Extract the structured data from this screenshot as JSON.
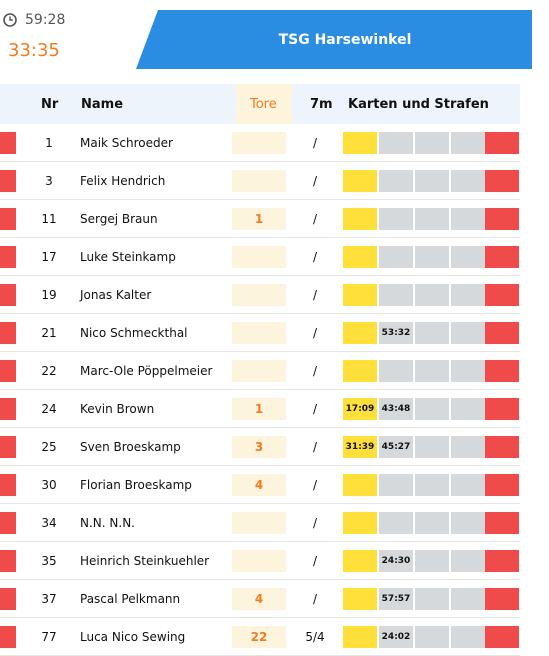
{
  "header": {
    "clock_icon": "clock-icon",
    "game_time": "59:28",
    "score_time": "33:35",
    "team_name": "TSG Harsewinkel"
  },
  "columns": {
    "nr": "Nr",
    "name": "Name",
    "tore": "Tore",
    "sevenm": "7m",
    "karten": "Karten und Strafen"
  },
  "players": [
    {
      "nr": "1",
      "name": "Maik Schroeder",
      "tore": "",
      "sevenm": "/",
      "yellow_time": "",
      "p1": "",
      "p2": "",
      "p3": ""
    },
    {
      "nr": "3",
      "name": "Felix Hendrich",
      "tore": "",
      "sevenm": "/",
      "yellow_time": "",
      "p1": "",
      "p2": "",
      "p3": ""
    },
    {
      "nr": "11",
      "name": "Sergej Braun",
      "tore": "1",
      "sevenm": "/",
      "yellow_time": "",
      "p1": "",
      "p2": "",
      "p3": ""
    },
    {
      "nr": "17",
      "name": "Luke Steinkamp",
      "tore": "",
      "sevenm": "/",
      "yellow_time": "",
      "p1": "",
      "p2": "",
      "p3": ""
    },
    {
      "nr": "19",
      "name": "Jonas Kalter",
      "tore": "",
      "sevenm": "/",
      "yellow_time": "",
      "p1": "",
      "p2": "",
      "p3": ""
    },
    {
      "nr": "21",
      "name": "Nico Schmeckthal",
      "tore": "",
      "sevenm": "/",
      "yellow_time": "",
      "p1": "53:32",
      "p2": "",
      "p3": ""
    },
    {
      "nr": "22",
      "name": "Marc-Ole Pöppelmeier",
      "tore": "",
      "sevenm": "/",
      "yellow_time": "",
      "p1": "",
      "p2": "",
      "p3": ""
    },
    {
      "nr": "24",
      "name": "Kevin Brown",
      "tore": "1",
      "sevenm": "/",
      "yellow_time": "17:09",
      "p1": "43:48",
      "p2": "",
      "p3": ""
    },
    {
      "nr": "25",
      "name": "Sven Broeskamp",
      "tore": "3",
      "sevenm": "/",
      "yellow_time": "31:39",
      "p1": "45:27",
      "p2": "",
      "p3": ""
    },
    {
      "nr": "30",
      "name": "Florian Broeskamp",
      "tore": "4",
      "sevenm": "/",
      "yellow_time": "",
      "p1": "",
      "p2": "",
      "p3": ""
    },
    {
      "nr": "34",
      "name": "N.N. N.N.",
      "tore": "",
      "sevenm": "/",
      "yellow_time": "",
      "p1": "",
      "p2": "",
      "p3": ""
    },
    {
      "nr": "35",
      "name": "Heinrich Steinkuehler",
      "tore": "",
      "sevenm": "/",
      "yellow_time": "",
      "p1": "24:30",
      "p2": "",
      "p3": ""
    },
    {
      "nr": "37",
      "name": "Pascal Pelkmann",
      "tore": "4",
      "sevenm": "/",
      "yellow_time": "",
      "p1": "57:57",
      "p2": "",
      "p3": ""
    },
    {
      "nr": "77",
      "name": "Luca Nico Sewing",
      "tore": "22",
      "sevenm": "5/4",
      "yellow_time": "",
      "p1": "24:02",
      "p2": "",
      "p3": ""
    }
  ],
  "colors": {
    "accent_blue": "#2a8de2",
    "goal_orange": "#f47c20",
    "yellow_card": "#ffe03a",
    "red_card": "#f04b4b",
    "empty_penalty": "#d6d9dc"
  }
}
